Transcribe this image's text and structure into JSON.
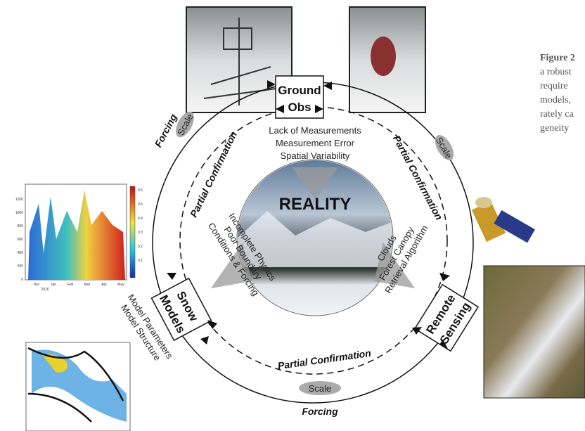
{
  "caption": {
    "lines": [
      "Figure 2",
      "a robust",
      "require",
      "models,",
      "rately ca",
      "geneity"
    ]
  },
  "nodes": {
    "ground_obs": [
      "Ground",
      "Obs"
    ],
    "snow_models": [
      "Snow",
      "Models"
    ],
    "remote_sensing": [
      "Remote",
      "Sensing"
    ],
    "reality": "REALITY"
  },
  "uncertainties": {
    "ground_obs": [
      "Lack of Measurements",
      "Measurement Error",
      "Spatial Variability"
    ],
    "snow_models": [
      "Incomplete Physics",
      "Poor Boundary",
      "Conditions & Forcing"
    ],
    "remote_sensing": [
      "Clouds",
      "Forest Canopy",
      "Retrieval Algorithm"
    ],
    "model_outer": [
      "Model Parameters",
      "Model Structure"
    ]
  },
  "links": {
    "left": {
      "forcing": "Forcing",
      "scale": "Scale",
      "partial": "Partial Confirmation"
    },
    "right": {
      "scale": "Scale",
      "partial": "Partial Confirmation"
    },
    "bottom": {
      "partial": "Partial Confirmation",
      "scale": "Scale",
      "forcing": "Forcing"
    }
  },
  "inset_chart": {
    "yticks": [
      "1200",
      "1000",
      "800",
      "600",
      "400",
      "200",
      "0"
    ],
    "months": [
      "Dec",
      "Jan",
      "Feb",
      "Mar",
      "Apr",
      "May"
    ],
    "year": "2016",
    "colorbar": [
      "0.6",
      "0.5",
      "0.4",
      "0.3",
      "0.2",
      "0.1"
    ]
  }
}
